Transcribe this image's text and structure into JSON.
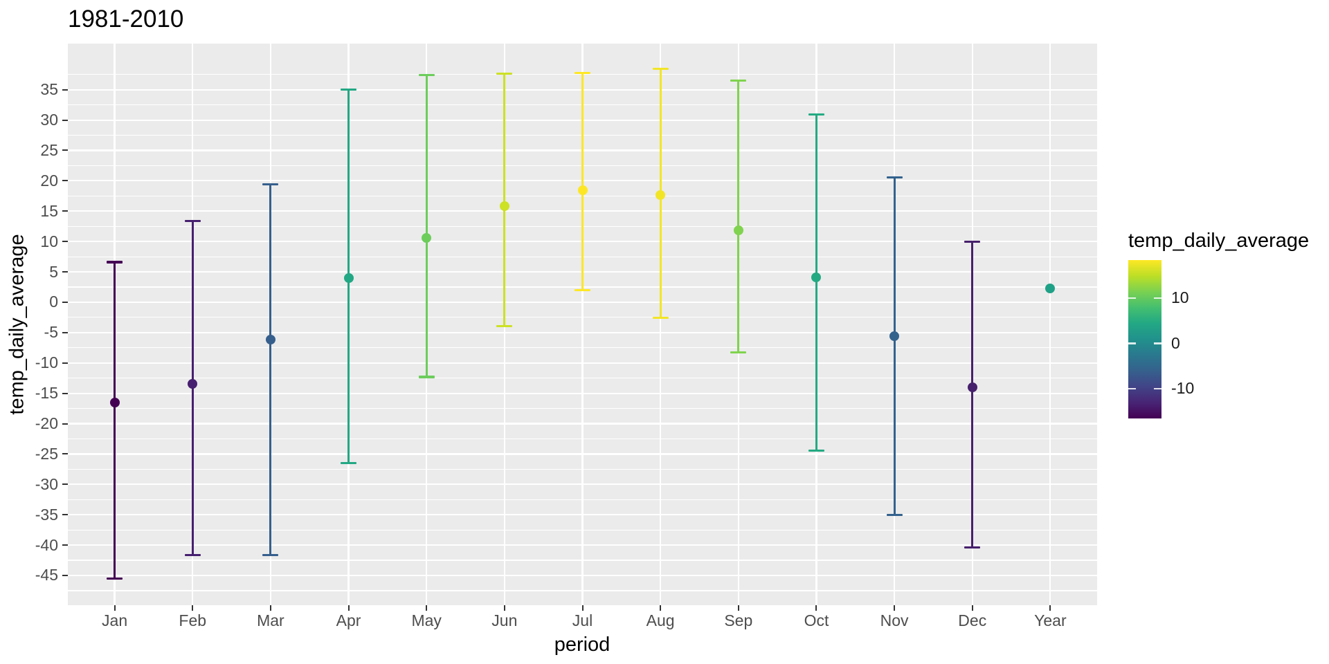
{
  "title": "1981-2010",
  "axes": {
    "x": {
      "title": "period",
      "categories": [
        "Jan",
        "Feb",
        "Mar",
        "Apr",
        "May",
        "Jun",
        "Jul",
        "Aug",
        "Sep",
        "Oct",
        "Nov",
        "Dec",
        "Year"
      ]
    },
    "y": {
      "title": "temp_daily_average",
      "ticks": [
        35,
        30,
        25,
        20,
        15,
        10,
        5,
        0,
        -5,
        -10,
        -15,
        -20,
        -25,
        -30,
        -35,
        -40,
        -45
      ]
    }
  },
  "legend": {
    "title": "temp_daily_average",
    "ticks": [
      10,
      0,
      -10
    ],
    "domain": [
      -16.6,
      18.4
    ],
    "gradient_top_to_bottom": [
      "#fde725",
      "#bddf26",
      "#7ad151",
      "#44bf70",
      "#22a884",
      "#21918c",
      "#2a788e",
      "#35608d",
      "#414487",
      "#482475",
      "#440154"
    ]
  },
  "colors": {
    "background": "#ffffff",
    "panel_bg": "#ebebeb",
    "gridline": "#ffffff",
    "axis_text": "#4d4d4d",
    "axis_tick": "#333333",
    "title_text": "#000000"
  },
  "chart_data": {
    "type": "pointrange",
    "title": "1981-2010",
    "xlabel": "period",
    "ylabel": "temp_daily_average",
    "ylim": [
      -49.9,
      42.6
    ],
    "grid": true,
    "legend_position": "right",
    "categories": [
      "Jan",
      "Feb",
      "Mar",
      "Apr",
      "May",
      "Jun",
      "Jul",
      "Aug",
      "Sep",
      "Oct",
      "Nov",
      "Dec",
      "Year"
    ],
    "series": [
      {
        "name": "temp_daily_average",
        "points": [
          {
            "category": "Jan",
            "mean": -16.5,
            "ymin": -45.5,
            "ymax": 6.6,
            "color": "#440154"
          },
          {
            "category": "Feb",
            "mean": -13.5,
            "ymin": -41.6,
            "ymax": 13.4,
            "color": "#471f70"
          },
          {
            "category": "Mar",
            "mean": -6.2,
            "ymin": -41.6,
            "ymax": 19.4,
            "color": "#365f8d"
          },
          {
            "category": "Apr",
            "mean": 4.0,
            "ymin": -26.5,
            "ymax": 35.0,
            "color": "#22a884"
          },
          {
            "category": "May",
            "mean": 10.6,
            "ymin": -12.3,
            "ymax": 37.4,
            "color": "#6ccd5b"
          },
          {
            "category": "Jun",
            "mean": 15.8,
            "ymin": -3.9,
            "ymax": 37.6,
            "color": "#cde125"
          },
          {
            "category": "Jul",
            "mean": 18.4,
            "ymin": 2.0,
            "ymax": 37.8,
            "color": "#fde725"
          },
          {
            "category": "Aug",
            "mean": 17.7,
            "ymin": -2.6,
            "ymax": 38.4,
            "color": "#f2e526"
          },
          {
            "category": "Sep",
            "mean": 11.8,
            "ymin": -8.3,
            "ymax": 36.5,
            "color": "#80d34e"
          },
          {
            "category": "Oct",
            "mean": 4.1,
            "ymin": -24.4,
            "ymax": 30.9,
            "color": "#24aa83"
          },
          {
            "category": "Nov",
            "mean": -5.6,
            "ymin": -35.0,
            "ymax": 20.6,
            "color": "#33628d"
          },
          {
            "category": "Dec",
            "mean": -14.0,
            "ymin": -40.4,
            "ymax": 10.0,
            "color": "#46206c"
          },
          {
            "category": "Year",
            "mean": 2.3,
            "ymin": null,
            "ymax": null,
            "color": "#1fa187"
          }
        ]
      }
    ]
  }
}
